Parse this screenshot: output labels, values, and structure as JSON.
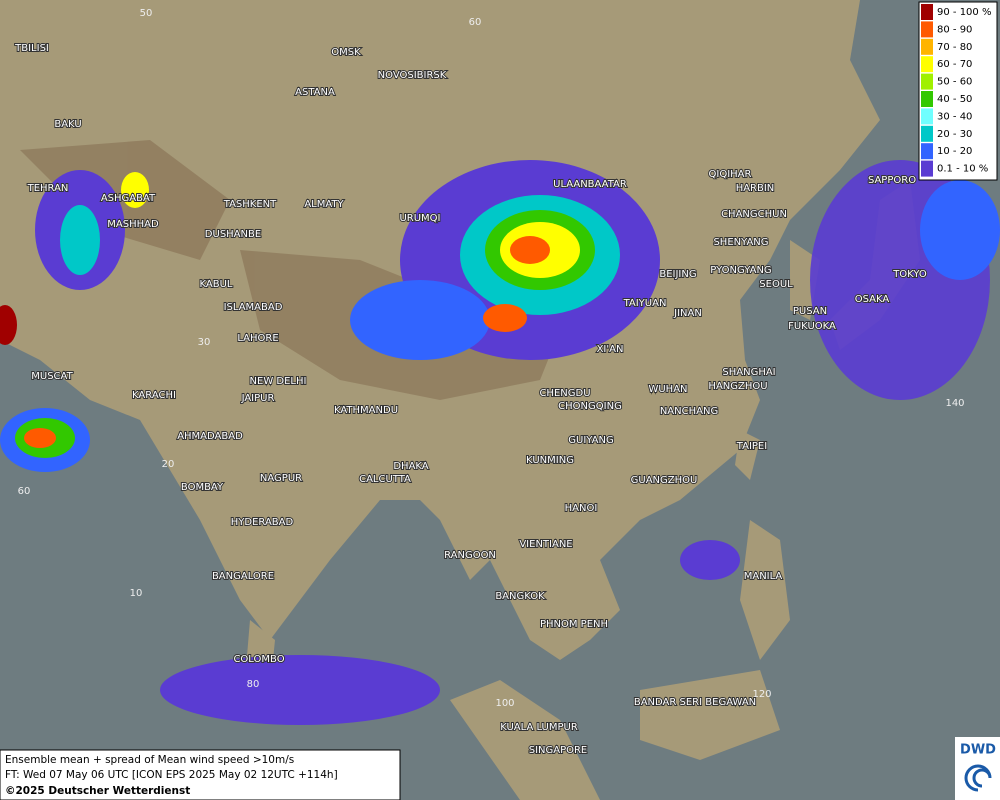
{
  "legend": {
    "items": [
      {
        "label": "90 - 100 %",
        "color": "#a00000"
      },
      {
        "label": "80 - 90",
        "color": "#ff5a00"
      },
      {
        "label": "70 - 80",
        "color": "#ffb400"
      },
      {
        "label": "60 - 70",
        "color": "#ffff00"
      },
      {
        "label": "50 - 60",
        "color": "#a0f000"
      },
      {
        "label": "40 - 50",
        "color": "#32c800"
      },
      {
        "label": "30 - 40",
        "color": "#70ffff"
      },
      {
        "label": "20 - 30",
        "color": "#00c8c8"
      },
      {
        "label": "10 - 20",
        "color": "#3264ff"
      },
      {
        "label": "0.1 - 10 %",
        "color": "#5a3cd2"
      }
    ]
  },
  "cities": [
    "TBILISI",
    "OMSK",
    "NOVOSIBIRSK",
    "ASTANA",
    "BAKU",
    "TEHRAN",
    "ASHGABAT",
    "MASHHAD",
    "TASHKENT",
    "ALMATY",
    "DUSHANBE",
    "URUMQI",
    "ULAANBAATAR",
    "QIQIHAR",
    "HARBIN",
    "CHANGCHUN",
    "SHENYANG",
    "BEIJING",
    "PYONGYANG",
    "SEOUL",
    "TOKYO",
    "SAPPORO",
    "OSAKA",
    "PUSAN",
    "FUKUOKA",
    "KABUL",
    "ISLAMABAD",
    "LAHORE",
    "TAIYUAN",
    "JINAN",
    "XI'AN",
    "SHANGHAI",
    "HANGZHOU",
    "NEW DELHI",
    "JAIPUR",
    "MUSCAT",
    "KARACHI",
    "WUHAN",
    "CHENGDU",
    "CHONGQING",
    "NANCHANG",
    "KATHMANDU",
    "TAIPEI",
    "AHMADABAD",
    "GUIYANG",
    "KUNMING",
    "DHAKA",
    "CALCUTTA",
    "NAGPUR",
    "GUANGZHOU",
    "BOMBAY",
    "HANOI",
    "HYDERABAD",
    "RANGOON",
    "VIENTIANE",
    "MANILA",
    "BANGALORE",
    "BANGKOK",
    "PHNOM PENH",
    "COLOMBO",
    "BANDAR SERI BEGAWAN",
    "KUALA LUMPUR",
    "SINGAPORE"
  ],
  "grid_labels": [
    "50",
    "60",
    "30",
    "20",
    "10",
    "60",
    "140",
    "80",
    "100",
    "120"
  ],
  "footer": {
    "line1": "Ensemble mean + spread of Mean wind speed >10m/s",
    "line2": "FT: Wed 07 May 06 UTC [ICON EPS 2025 May 02 12UTC +114h]",
    "line3": "©2025 Deutscher Wetterdienst"
  },
  "logo": "DWD"
}
